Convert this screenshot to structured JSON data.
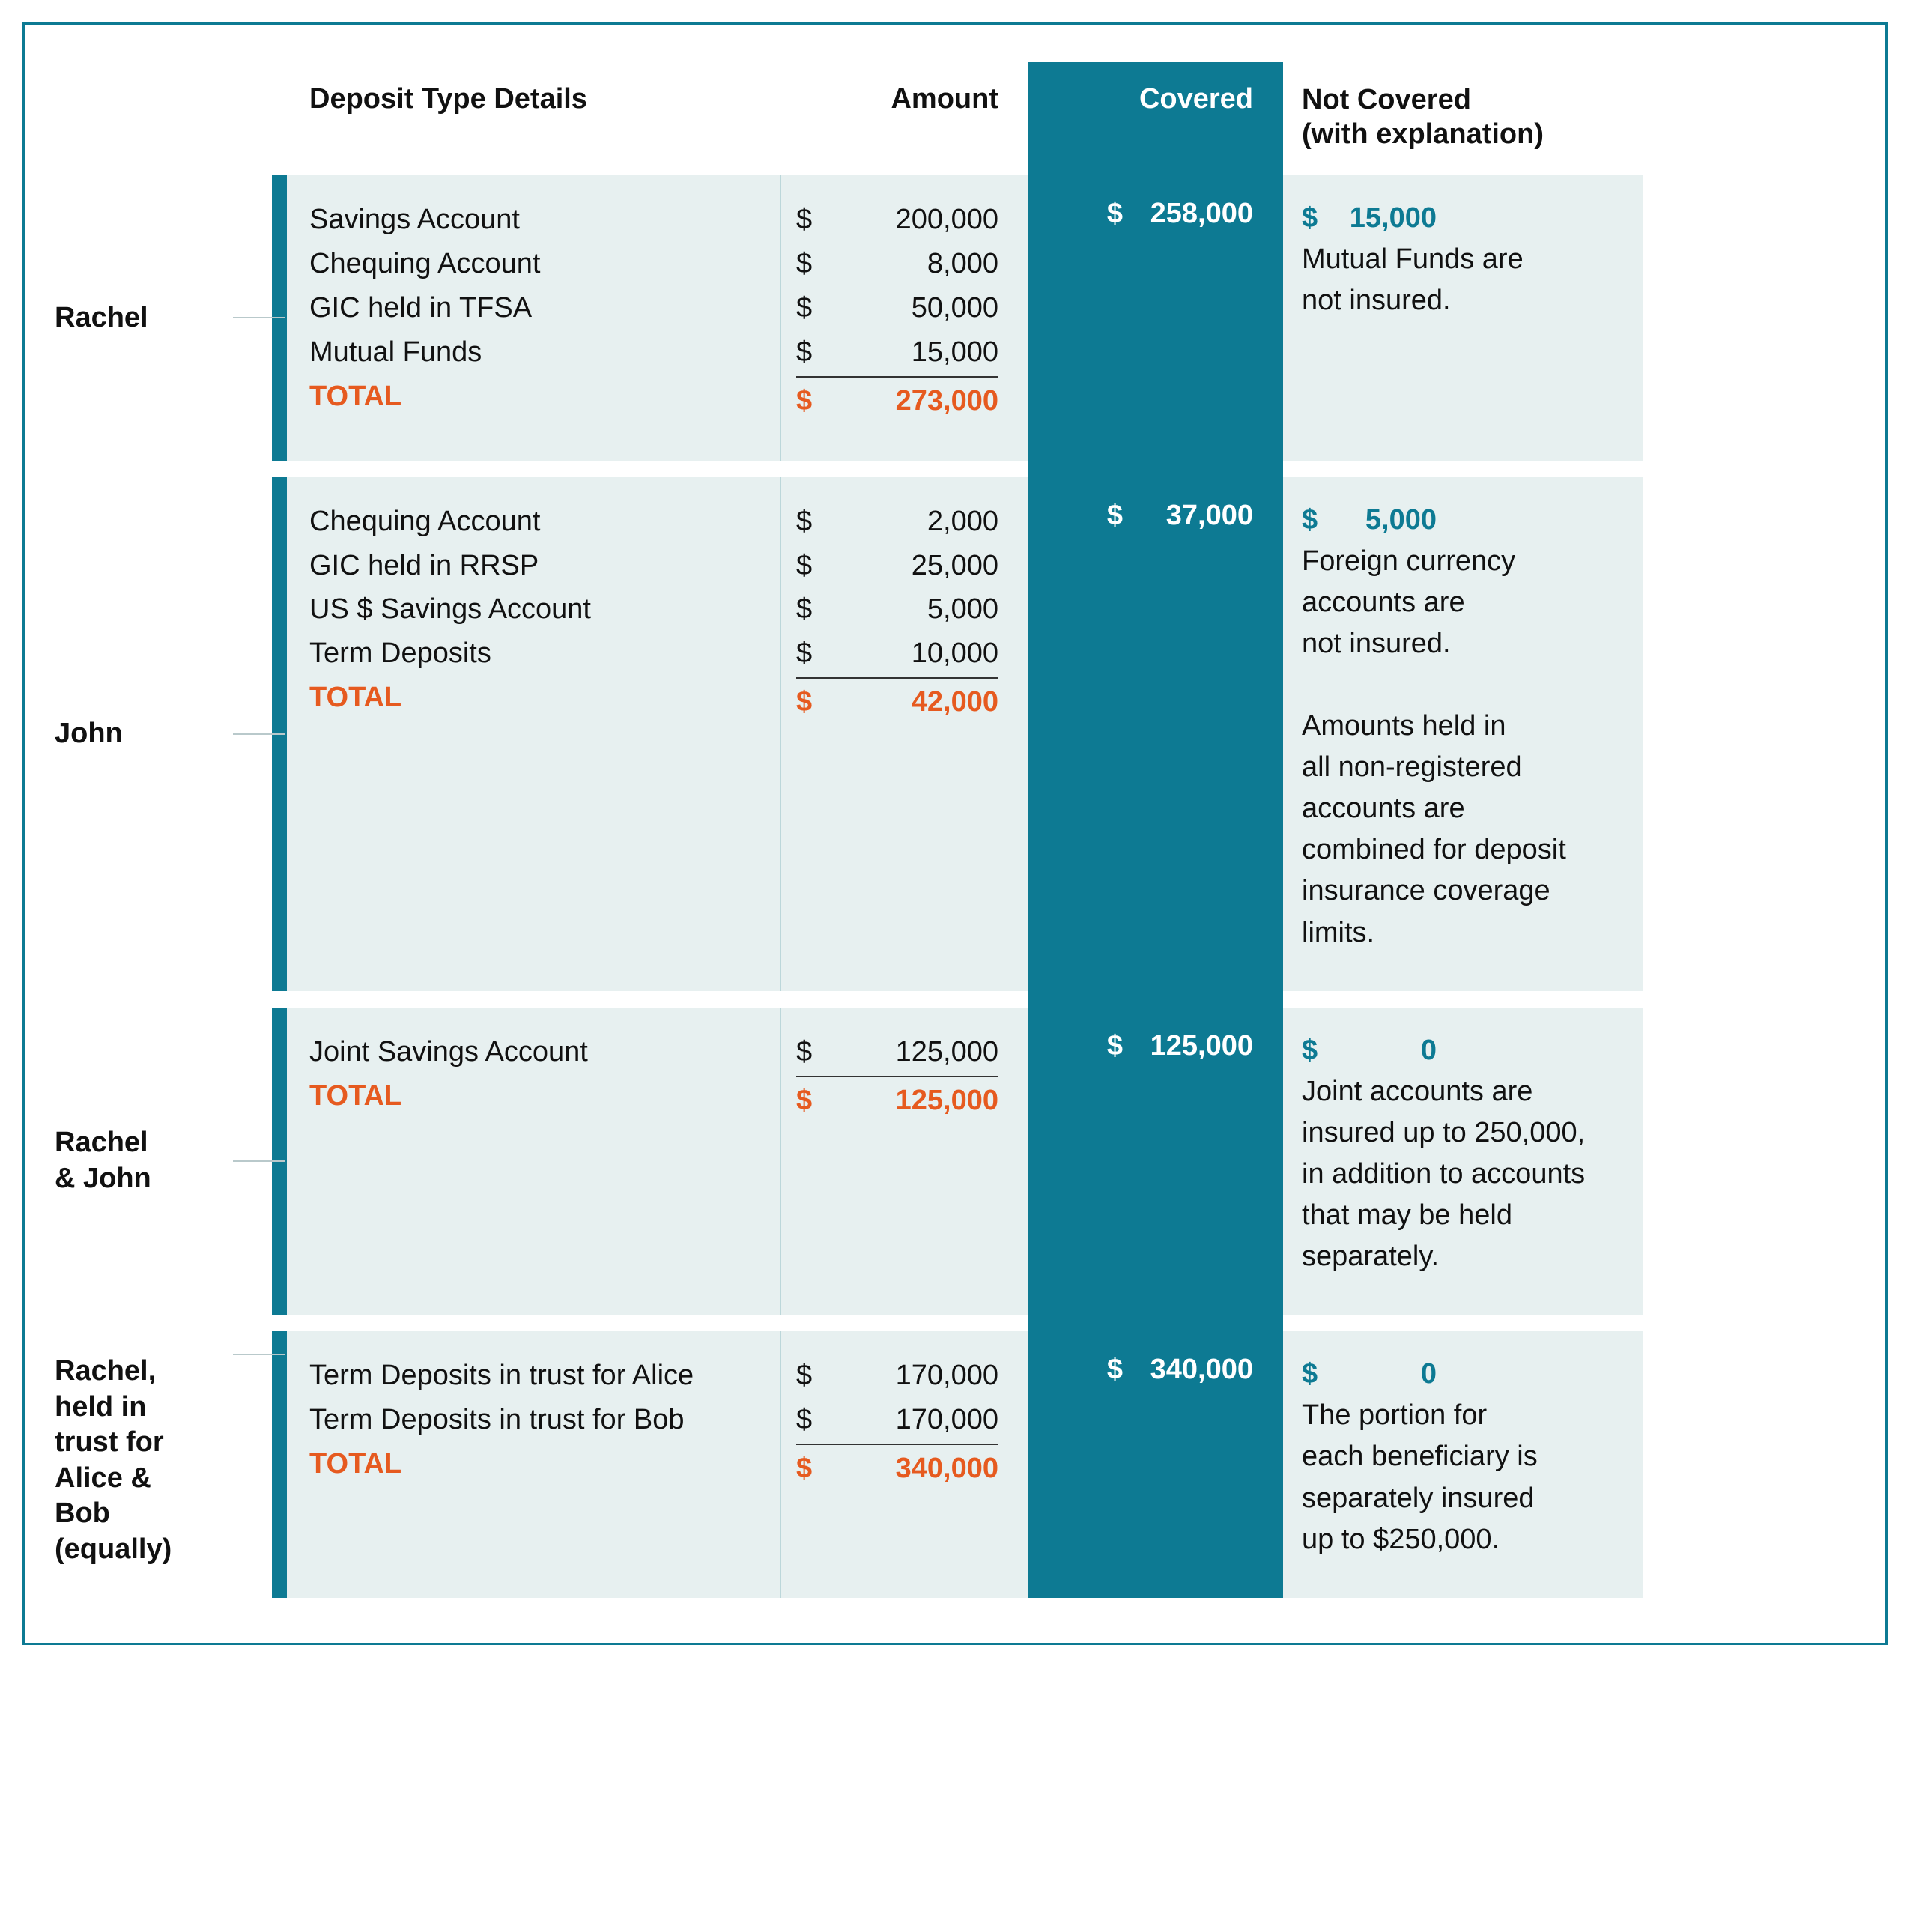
{
  "colors": {
    "frame_border": "#0d7a93",
    "teal": "#0d7a93",
    "panel_bg": "#e7f0f0",
    "panel_divider": "#bcd7da",
    "total_orange": "#e65a1f",
    "text": "#111111",
    "connector": "#b9c9cb"
  },
  "headers": {
    "deposit": "Deposit Type Details",
    "amount": "Amount",
    "covered": "Covered",
    "not_covered_line1": "Not Covered",
    "not_covered_line2": "(with explanation)"
  },
  "total_label": "TOTAL",
  "sections": [
    {
      "name": "Rachel",
      "items": [
        {
          "label": "Savings Account",
          "amount": "200,000"
        },
        {
          "label": "Chequing Account",
          "amount": "8,000"
        },
        {
          "label": "GIC held in TFSA",
          "amount": "50,000"
        },
        {
          "label": "Mutual Funds",
          "amount": "15,000"
        }
      ],
      "total": "273,000",
      "covered": "258,000",
      "not_covered_amount": "15,000",
      "not_covered_text": [
        "Mutual Funds are",
        "not insured."
      ]
    },
    {
      "name": "John",
      "items": [
        {
          "label": "Chequing Account",
          "amount": "2,000"
        },
        {
          "label": "GIC held in RRSP",
          "amount": "25,000"
        },
        {
          "label": "US $ Savings Account",
          "amount": "5,000"
        },
        {
          "label": "Term Deposits",
          "amount": "10,000"
        }
      ],
      "total": "42,000",
      "covered": "37,000",
      "not_covered_amount": "5,000",
      "not_covered_text": [
        "Foreign currency",
        "accounts are",
        "not insured.",
        "",
        "Amounts held in",
        "all non-registered",
        "accounts are",
        "combined for deposit",
        "insurance coverage",
        "limits."
      ]
    },
    {
      "name": "Rachel\n& John",
      "items": [
        {
          "label": "Joint Savings Account",
          "amount": "125,000"
        }
      ],
      "total": "125,000",
      "covered": "125,000",
      "not_covered_amount": "0",
      "not_covered_text": [
        "Joint accounts are",
        "insured up to 250,000,",
        "in addition to accounts",
        "that may be held",
        "separately."
      ]
    },
    {
      "name": "Rachel,\nheld in\ntrust for\nAlice &\nBob\n(equally)",
      "label_align": "start",
      "items": [
        {
          "label": "Term Deposits in trust for Alice",
          "amount": "170,000"
        },
        {
          "label": "Term Deposits in trust for Bob",
          "amount": "170,000"
        }
      ],
      "total": "340,000",
      "covered": "340,000",
      "not_covered_amount": "0",
      "not_covered_text": [
        "The portion for",
        "each beneficiary is",
        "separately insured",
        "up to $250,000."
      ]
    }
  ]
}
